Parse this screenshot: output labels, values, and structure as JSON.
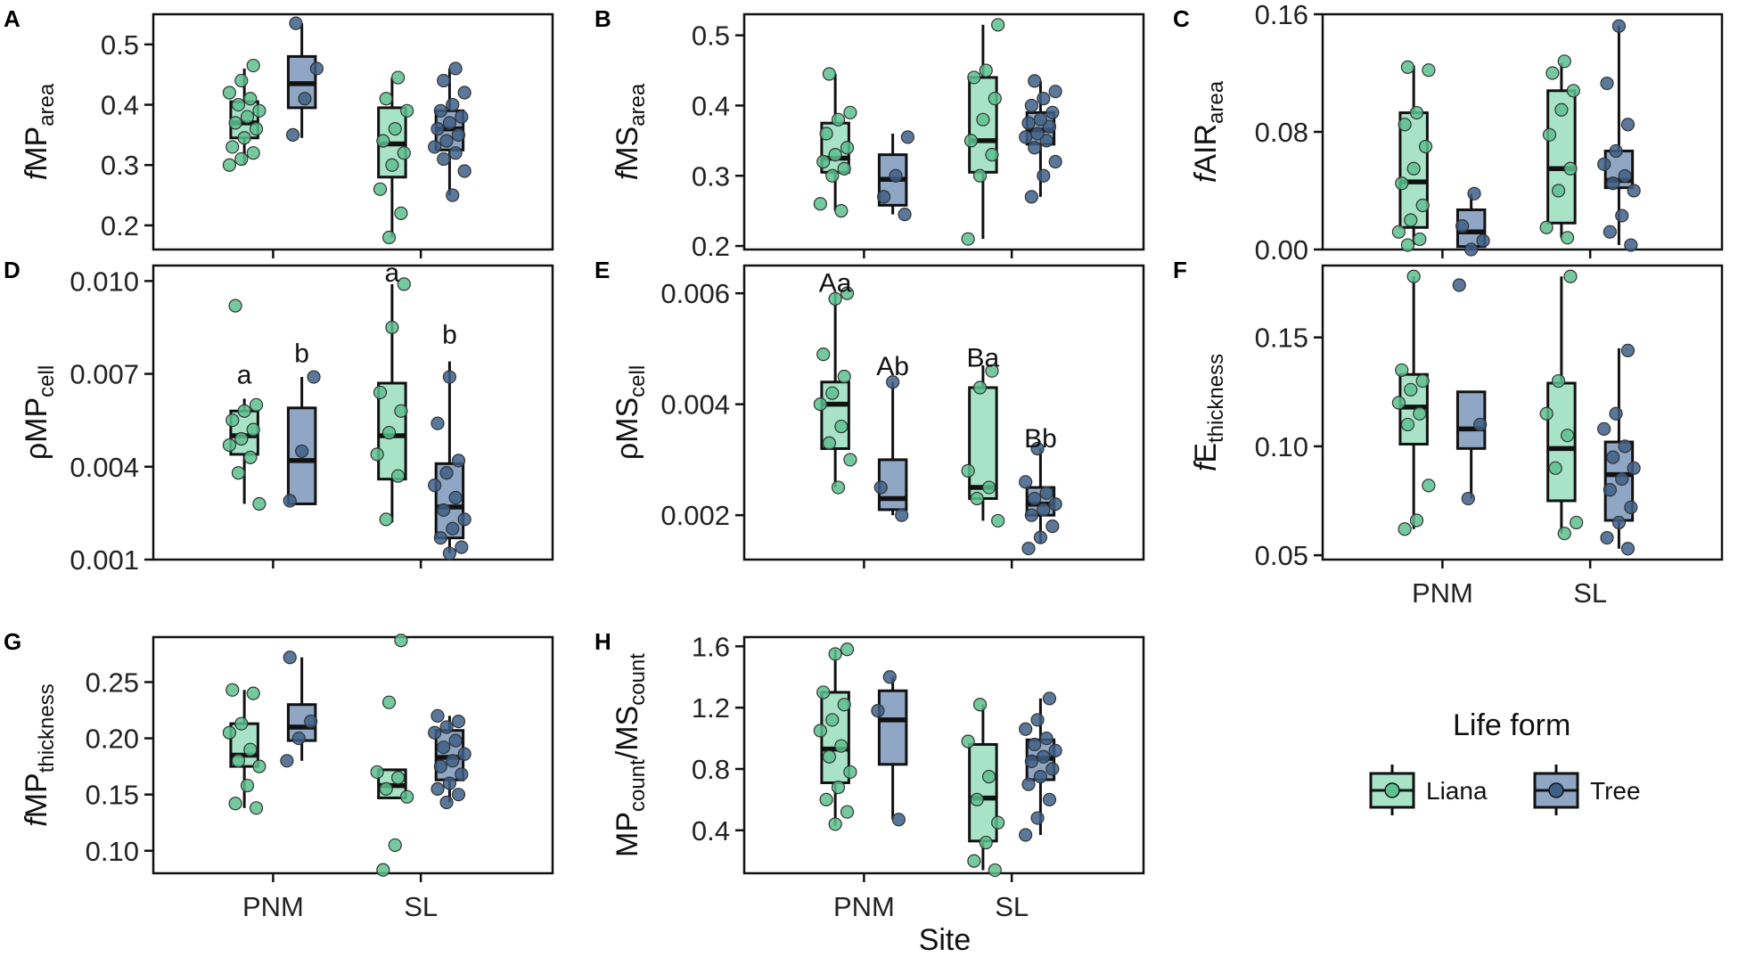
{
  "chart_data": [
    {
      "letter": "A",
      "type": "box",
      "ylabel_prefix": "f",
      "ylabel_main": "MP",
      "ylabel_sub": "area",
      "ylim": [
        0.16,
        0.55
      ],
      "yticks": [
        0.2,
        0.3,
        0.4,
        0.5
      ],
      "yticklabels": [
        "0.2",
        "0.3",
        "0.4",
        "0.5"
      ],
      "categories": [
        "PNM",
        "SL"
      ],
      "show_xlabels": false,
      "groups": [
        {
          "site": "PNM",
          "form": "Liana",
          "q1": 0.345,
          "median": 0.37,
          "q3": 0.405,
          "wlo": 0.3,
          "whi": 0.46,
          "points": [
            0.3,
            0.31,
            0.32,
            0.33,
            0.345,
            0.36,
            0.37,
            0.38,
            0.39,
            0.4,
            0.41,
            0.42,
            0.44,
            0.465
          ],
          "labels": []
        },
        {
          "site": "PNM",
          "form": "Tree",
          "q1": 0.395,
          "median": 0.435,
          "q3": 0.48,
          "wlo": 0.345,
          "whi": 0.535,
          "points": [
            0.35,
            0.41,
            0.46,
            0.535
          ],
          "labels": []
        },
        {
          "site": "SL",
          "form": "Liana",
          "q1": 0.28,
          "median": 0.335,
          "q3": 0.395,
          "wlo": 0.18,
          "whi": 0.445,
          "points": [
            0.18,
            0.22,
            0.26,
            0.3,
            0.32,
            0.34,
            0.36,
            0.39,
            0.41,
            0.445
          ],
          "labels": []
        },
        {
          "site": "SL",
          "form": "Tree",
          "q1": 0.325,
          "median": 0.36,
          "q3": 0.39,
          "wlo": 0.25,
          "whi": 0.46,
          "points": [
            0.25,
            0.29,
            0.31,
            0.32,
            0.33,
            0.34,
            0.35,
            0.36,
            0.37,
            0.38,
            0.39,
            0.4,
            0.42,
            0.44,
            0.46
          ],
          "labels": []
        }
      ]
    },
    {
      "letter": "B",
      "type": "box",
      "ylabel_prefix": "f",
      "ylabel_main": "MS",
      "ylabel_sub": "area",
      "ylim": [
        0.195,
        0.53
      ],
      "yticks": [
        0.2,
        0.3,
        0.4,
        0.5
      ],
      "yticklabels": [
        "0.2",
        "0.3",
        "0.4",
        "0.5"
      ],
      "categories": [
        "PNM",
        "SL"
      ],
      "show_xlabels": false,
      "groups": [
        {
          "site": "PNM",
          "form": "Liana",
          "q1": 0.305,
          "median": 0.325,
          "q3": 0.375,
          "wlo": 0.25,
          "whi": 0.445,
          "points": [
            0.25,
            0.26,
            0.3,
            0.31,
            0.32,
            0.33,
            0.34,
            0.36,
            0.38,
            0.39,
            0.445
          ],
          "labels": []
        },
        {
          "site": "PNM",
          "form": "Tree",
          "q1": 0.258,
          "median": 0.295,
          "q3": 0.33,
          "wlo": 0.245,
          "whi": 0.36,
          "points": [
            0.245,
            0.27,
            0.3,
            0.355
          ],
          "labels": []
        },
        {
          "site": "SL",
          "form": "Liana",
          "q1": 0.305,
          "median": 0.35,
          "q3": 0.44,
          "wlo": 0.21,
          "whi": 0.515,
          "points": [
            0.21,
            0.3,
            0.33,
            0.35,
            0.38,
            0.41,
            0.44,
            0.45,
            0.515
          ],
          "labels": []
        },
        {
          "site": "SL",
          "form": "Tree",
          "q1": 0.345,
          "median": 0.365,
          "q3": 0.39,
          "wlo": 0.27,
          "whi": 0.435,
          "points": [
            0.27,
            0.3,
            0.32,
            0.34,
            0.35,
            0.355,
            0.36,
            0.37,
            0.375,
            0.38,
            0.39,
            0.4,
            0.41,
            0.42,
            0.435
          ],
          "labels": []
        }
      ]
    },
    {
      "letter": "C",
      "type": "box",
      "ylabel_prefix": "f",
      "ylabel_main": "AIR",
      "ylabel_sub": "area",
      "ylim": [
        0.0,
        0.16
      ],
      "yticks": [
        0.0,
        0.08,
        0.16
      ],
      "yticklabels": [
        "0.00",
        "0.08",
        "0.16"
      ],
      "categories": [
        "PNM",
        "SL"
      ],
      "show_xlabels": false,
      "groups": [
        {
          "site": "PNM",
          "form": "Liana",
          "q1": 0.015,
          "median": 0.046,
          "q3": 0.093,
          "wlo": 0.003,
          "whi": 0.125,
          "points": [
            0.003,
            0.007,
            0.012,
            0.02,
            0.03,
            0.045,
            0.055,
            0.07,
            0.085,
            0.093,
            0.122,
            0.124
          ],
          "labels": []
        },
        {
          "site": "PNM",
          "form": "Tree",
          "q1": 0.002,
          "median": 0.012,
          "q3": 0.027,
          "wlo": 0.0,
          "whi": 0.038,
          "points": [
            0.0,
            0.006,
            0.016,
            0.038
          ],
          "labels": []
        },
        {
          "site": "SL",
          "form": "Liana",
          "q1": 0.018,
          "median": 0.055,
          "q3": 0.108,
          "wlo": 0.008,
          "whi": 0.127,
          "points": [
            0.008,
            0.015,
            0.04,
            0.055,
            0.078,
            0.095,
            0.108,
            0.12,
            0.128
          ],
          "labels": []
        },
        {
          "site": "SL",
          "form": "Tree",
          "q1": 0.042,
          "median": 0.047,
          "q3": 0.067,
          "wlo": 0.003,
          "whi": 0.152,
          "points": [
            0.003,
            0.012,
            0.023,
            0.04,
            0.045,
            0.05,
            0.058,
            0.067,
            0.085,
            0.113,
            0.152
          ],
          "labels": []
        }
      ]
    },
    {
      "letter": "D",
      "type": "box",
      "ylabel_prefix": "ρ",
      "ylabel_main": "MP",
      "ylabel_sub": "cell",
      "ylim": [
        0.001,
        0.0105
      ],
      "yticks": [
        0.001,
        0.004,
        0.007,
        0.01
      ],
      "yticklabels": [
        "0.001",
        "0.004",
        "0.007",
        "0.010"
      ],
      "categories": [
        "PNM",
        "SL"
      ],
      "show_xlabels": false,
      "groups": [
        {
          "site": "PNM",
          "form": "Liana",
          "q1": 0.0044,
          "median": 0.005,
          "q3": 0.0058,
          "wlo": 0.0028,
          "whi": 0.0062,
          "points": [
            0.0028,
            0.0038,
            0.0043,
            0.0047,
            0.0049,
            0.0052,
            0.0055,
            0.0058,
            0.006,
            0.0092
          ],
          "labels": [
            "a"
          ],
          "label_y": 0.007
        },
        {
          "site": "PNM",
          "form": "Tree",
          "q1": 0.0028,
          "median": 0.0042,
          "q3": 0.0059,
          "wlo": 0.0028,
          "whi": 0.0069,
          "points": [
            0.0029,
            0.0045,
            0.0069
          ],
          "labels": [
            "b"
          ],
          "label_y": 0.0077
        },
        {
          "site": "SL",
          "form": "Liana",
          "q1": 0.0036,
          "median": 0.005,
          "q3": 0.0067,
          "wlo": 0.0022,
          "whi": 0.0099,
          "points": [
            0.0023,
            0.0037,
            0.0044,
            0.0051,
            0.0058,
            0.0064,
            0.0085,
            0.0099
          ],
          "labels": [
            "a"
          ],
          "label_y": 0.0103
        },
        {
          "site": "SL",
          "form": "Tree",
          "q1": 0.0017,
          "median": 0.0027,
          "q3": 0.0041,
          "wlo": 0.0012,
          "whi": 0.0074,
          "points": [
            0.0012,
            0.0014,
            0.0017,
            0.002,
            0.0023,
            0.0026,
            0.003,
            0.0034,
            0.0038,
            0.0042,
            0.0054,
            0.0069
          ],
          "labels": [
            "b"
          ],
          "label_y": 0.0083
        }
      ]
    },
    {
      "letter": "E",
      "type": "box",
      "ylabel_prefix": "ρ",
      "ylabel_main": "MS",
      "ylabel_sub": "cell",
      "ylim": [
        0.0012,
        0.0065
      ],
      "yticks": [
        0.002,
        0.004,
        0.006
      ],
      "yticklabels": [
        "0.002",
        "0.004",
        "0.006"
      ],
      "categories": [
        "PNM",
        "SL"
      ],
      "show_xlabels": false,
      "groups": [
        {
          "site": "PNM",
          "form": "Liana",
          "q1": 0.0032,
          "median": 0.004,
          "q3": 0.0044,
          "wlo": 0.0025,
          "whi": 0.006,
          "points": [
            0.0025,
            0.003,
            0.0033,
            0.0036,
            0.004,
            0.0042,
            0.0045,
            0.0049,
            0.0059,
            0.006
          ],
          "labels": [
            "Aa"
          ],
          "label_y": 0.0062
        },
        {
          "site": "PNM",
          "form": "Tree",
          "q1": 0.0021,
          "median": 0.0023,
          "q3": 0.003,
          "wlo": 0.002,
          "whi": 0.0044,
          "points": [
            0.002,
            0.0025,
            0.0044
          ],
          "labels": [
            "Ab"
          ],
          "label_y": 0.0047
        },
        {
          "site": "SL",
          "form": "Liana",
          "q1": 0.0023,
          "median": 0.0025,
          "q3": 0.0043,
          "wlo": 0.0019,
          "whi": 0.0047,
          "points": [
            0.0019,
            0.0023,
            0.0025,
            0.0028,
            0.0043,
            0.0046
          ],
          "labels": [
            "Ba"
          ],
          "label_y": 0.00485
        },
        {
          "site": "SL",
          "form": "Tree",
          "q1": 0.002,
          "median": 0.0022,
          "q3": 0.0025,
          "wlo": 0.0015,
          "whi": 0.0032,
          "points": [
            0.0014,
            0.0016,
            0.0018,
            0.002,
            0.0021,
            0.0022,
            0.0023,
            0.0024,
            0.0026,
            0.0032
          ],
          "labels": [
            "Bb"
          ],
          "label_y": 0.0034
        }
      ]
    },
    {
      "letter": "F",
      "type": "box",
      "ylabel_prefix": "f",
      "ylabel_main": "E",
      "ylabel_sub": "thickness",
      "ylim": [
        0.048,
        0.183
      ],
      "yticks": [
        0.05,
        0.1,
        0.15
      ],
      "yticklabels": [
        "0.05",
        "0.10",
        "0.15"
      ],
      "categories": [
        "PNM",
        "SL"
      ],
      "show_xlabels": true,
      "groups": [
        {
          "site": "PNM",
          "form": "Liana",
          "q1": 0.101,
          "median": 0.118,
          "q3": 0.133,
          "wlo": 0.062,
          "whi": 0.178,
          "points": [
            0.062,
            0.066,
            0.082,
            0.11,
            0.115,
            0.12,
            0.126,
            0.13,
            0.135,
            0.178
          ],
          "labels": []
        },
        {
          "site": "PNM",
          "form": "Tree",
          "q1": 0.099,
          "median": 0.108,
          "q3": 0.125,
          "wlo": 0.076,
          "whi": 0.125,
          "points": [
            0.076,
            0.11,
            0.174
          ],
          "labels": []
        },
        {
          "site": "SL",
          "form": "Liana",
          "q1": 0.075,
          "median": 0.099,
          "q3": 0.129,
          "wlo": 0.06,
          "whi": 0.178,
          "points": [
            0.06,
            0.065,
            0.09,
            0.105,
            0.115,
            0.13,
            0.178
          ],
          "labels": []
        },
        {
          "site": "SL",
          "form": "Tree",
          "q1": 0.066,
          "median": 0.087,
          "q3": 0.102,
          "wlo": 0.053,
          "whi": 0.145,
          "points": [
            0.053,
            0.058,
            0.065,
            0.072,
            0.08,
            0.085,
            0.09,
            0.095,
            0.1,
            0.108,
            0.115,
            0.144
          ],
          "labels": []
        }
      ]
    },
    {
      "letter": "G",
      "type": "box",
      "ylabel_prefix": "f",
      "ylabel_main": "MP",
      "ylabel_sub": "thickness",
      "ylim": [
        0.08,
        0.29
      ],
      "yticks": [
        0.1,
        0.15,
        0.2,
        0.25
      ],
      "yticklabels": [
        "0.10",
        "0.15",
        "0.20",
        "0.25"
      ],
      "categories": [
        "PNM",
        "SL"
      ],
      "show_xlabels": true,
      "groups": [
        {
          "site": "PNM",
          "form": "Liana",
          "q1": 0.175,
          "median": 0.185,
          "q3": 0.213,
          "wlo": 0.138,
          "whi": 0.243,
          "points": [
            0.138,
            0.142,
            0.158,
            0.175,
            0.18,
            0.19,
            0.205,
            0.213,
            0.24,
            0.243
          ],
          "labels": []
        },
        {
          "site": "PNM",
          "form": "Tree",
          "q1": 0.198,
          "median": 0.21,
          "q3": 0.23,
          "wlo": 0.18,
          "whi": 0.272,
          "points": [
            0.18,
            0.2,
            0.215,
            0.272
          ],
          "labels": []
        },
        {
          "site": "SL",
          "form": "Liana",
          "q1": 0.147,
          "median": 0.158,
          "q3": 0.172,
          "wlo": 0.147,
          "whi": 0.172,
          "points": [
            0.083,
            0.105,
            0.148,
            0.155,
            0.165,
            0.17,
            0.232,
            0.287
          ],
          "labels": []
        },
        {
          "site": "SL",
          "form": "Tree",
          "q1": 0.163,
          "median": 0.183,
          "q3": 0.207,
          "wlo": 0.143,
          "whi": 0.22,
          "points": [
            0.143,
            0.15,
            0.155,
            0.16,
            0.168,
            0.175,
            0.18,
            0.186,
            0.192,
            0.198,
            0.205,
            0.21,
            0.215,
            0.22
          ],
          "labels": []
        }
      ]
    },
    {
      "letter": "H",
      "type": "box",
      "ylabel_prefix": "",
      "ylabel_main": "MP",
      "ylabel_sub": "count",
      "ylabel_main2": "/MS",
      "ylabel_sub2": "count",
      "ylim": [
        0.12,
        1.66
      ],
      "yticks": [
        0.4,
        0.8,
        1.2,
        1.6
      ],
      "yticklabels": [
        "0.4",
        "0.8",
        "1.2",
        "1.6"
      ],
      "categories": [
        "PNM",
        "SL"
      ],
      "show_xlabels": true,
      "groups": [
        {
          "site": "PNM",
          "form": "Liana",
          "q1": 0.71,
          "median": 0.93,
          "q3": 1.3,
          "wlo": 0.43,
          "whi": 1.58,
          "points": [
            0.44,
            0.52,
            0.6,
            0.68,
            0.78,
            0.88,
            0.95,
            1.05,
            1.12,
            1.22,
            1.3,
            1.55,
            1.58
          ],
          "labels": []
        },
        {
          "site": "PNM",
          "form": "Tree",
          "q1": 0.83,
          "median": 1.12,
          "q3": 1.31,
          "wlo": 0.47,
          "whi": 1.4,
          "points": [
            0.47,
            1.18,
            1.4
          ],
          "labels": []
        },
        {
          "site": "SL",
          "form": "Liana",
          "q1": 0.33,
          "median": 0.61,
          "q3": 0.96,
          "wlo": 0.14,
          "whi": 1.22,
          "points": [
            0.14,
            0.2,
            0.32,
            0.45,
            0.6,
            0.75,
            0.98,
            1.22
          ],
          "labels": []
        },
        {
          "site": "SL",
          "form": "Tree",
          "q1": 0.73,
          "median": 0.87,
          "q3": 0.99,
          "wlo": 0.37,
          "whi": 1.26,
          "points": [
            0.37,
            0.48,
            0.6,
            0.7,
            0.75,
            0.8,
            0.85,
            0.88,
            0.92,
            0.96,
            1.0,
            1.06,
            1.12,
            1.26
          ],
          "labels": []
        }
      ]
    }
  ],
  "x_axis_title": "Site",
  "legend": {
    "title": "Life form",
    "items": [
      {
        "label": "Liana",
        "fill": "#a8e3c8",
        "point": "#5cc08e"
      },
      {
        "label": "Tree",
        "fill": "#8fa6c4",
        "point": "#3e5f87"
      }
    ]
  },
  "colors": {
    "liana_fill": "#a8e3c8",
    "liana_point": "#5cc08e",
    "tree_fill": "#8fa6c4",
    "tree_point": "#3e5f87",
    "line": "#111111"
  }
}
